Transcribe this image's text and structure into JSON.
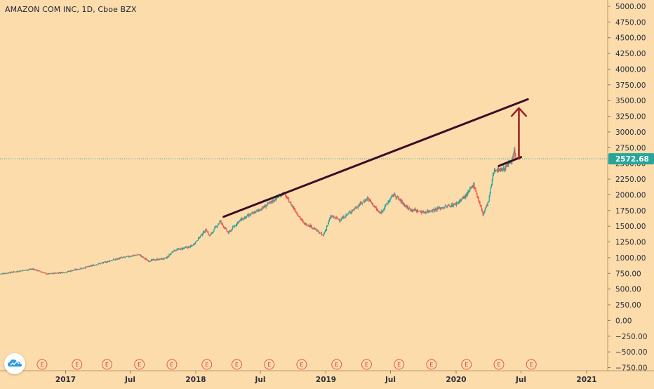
{
  "header": {
    "title": "AMAZON COM INC, 1D, Cboe BZX"
  },
  "price_scale": {
    "ticks": [
      "5000.00",
      "4750.00",
      "4500.00",
      "4250.00",
      "4000.00",
      "3750.00",
      "3500.00",
      "3250.00",
      "3000.00",
      "2750.00",
      "2500.00",
      "2250.00",
      "2000.00",
      "1750.00",
      "1500.00",
      "1250.00",
      "1000.00",
      "750.00",
      "500.00",
      "250.00",
      "0.00",
      "−250.00",
      "−500.00",
      "−750.00"
    ],
    "last_price": "2572.68",
    "last_price_color": "#26a69a"
  },
  "time_scale": {
    "labels": [
      "2017",
      "Jul",
      "2018",
      "Jul",
      "2019",
      "Jul",
      "2020",
      "Jul",
      "2021"
    ]
  },
  "earnings_marker": "E",
  "logo_icon": "tradingview-cloud-icon",
  "colors": {
    "background": "#fddcab",
    "up": "#26a69a",
    "down": "#ef5350",
    "trendline": "#3b0d26",
    "arrow": "#9c1c1c",
    "earnings": "#e0554f"
  },
  "chart_data": {
    "type": "candlestick",
    "title": "AMAZON COM INC, 1D, Cboe BZX",
    "ylim": [
      -800,
      5100
    ],
    "y_ticks": [
      5000,
      4750,
      4500,
      4250,
      4000,
      3750,
      3500,
      3250,
      3000,
      2750,
      2500,
      2250,
      2000,
      1750,
      1500,
      1250,
      1000,
      750,
      500,
      250,
      0,
      -250,
      -500,
      -750
    ],
    "x_range": [
      "2016-07-01",
      "2021-03-01"
    ],
    "x_ticks": [
      {
        "label": "2017",
        "date": "2017-01-01"
      },
      {
        "label": "Jul",
        "date": "2017-07-01"
      },
      {
        "label": "2018",
        "date": "2018-01-01"
      },
      {
        "label": "Jul",
        "date": "2018-07-01"
      },
      {
        "label": "2019",
        "date": "2019-01-01"
      },
      {
        "label": "Jul",
        "date": "2019-07-01"
      },
      {
        "label": "2020",
        "date": "2020-01-01"
      },
      {
        "label": "Jul",
        "date": "2020-07-01"
      },
      {
        "label": "2021",
        "date": "2021-01-01"
      }
    ],
    "last_price": 2572.68,
    "price_path": [
      {
        "date": "2016-07-01",
        "price": 740
      },
      {
        "date": "2016-10-01",
        "price": 820
      },
      {
        "date": "2016-11-10",
        "price": 740
      },
      {
        "date": "2017-01-01",
        "price": 770
      },
      {
        "date": "2017-03-01",
        "price": 850
      },
      {
        "date": "2017-06-01",
        "price": 990
      },
      {
        "date": "2017-07-25",
        "price": 1050
      },
      {
        "date": "2017-08-20",
        "price": 950
      },
      {
        "date": "2017-10-10",
        "price": 990
      },
      {
        "date": "2017-10-30",
        "price": 1110
      },
      {
        "date": "2017-12-20",
        "price": 1180
      },
      {
        "date": "2018-01-30",
        "price": 1450
      },
      {
        "date": "2018-02-08",
        "price": 1340
      },
      {
        "date": "2018-03-10",
        "price": 1580
      },
      {
        "date": "2018-04-02",
        "price": 1390
      },
      {
        "date": "2018-05-01",
        "price": 1580
      },
      {
        "date": "2018-07-10",
        "price": 1800
      },
      {
        "date": "2018-09-04",
        "price": 2030
      },
      {
        "date": "2018-10-10",
        "price": 1720
      },
      {
        "date": "2018-10-30",
        "price": 1550
      },
      {
        "date": "2018-11-20",
        "price": 1500
      },
      {
        "date": "2018-12-24",
        "price": 1350
      },
      {
        "date": "2019-01-15",
        "price": 1660
      },
      {
        "date": "2019-02-10",
        "price": 1600
      },
      {
        "date": "2019-04-28",
        "price": 1950
      },
      {
        "date": "2019-06-01",
        "price": 1700
      },
      {
        "date": "2019-07-10",
        "price": 2010
      },
      {
        "date": "2019-08-20",
        "price": 1780
      },
      {
        "date": "2019-10-01",
        "price": 1720
      },
      {
        "date": "2019-12-30",
        "price": 1850
      },
      {
        "date": "2020-01-31",
        "price": 2000
      },
      {
        "date": "2020-02-19",
        "price": 2170
      },
      {
        "date": "2020-03-16",
        "price": 1690
      },
      {
        "date": "2020-04-01",
        "price": 1900
      },
      {
        "date": "2020-04-16",
        "price": 2400
      },
      {
        "date": "2020-05-15",
        "price": 2410
      },
      {
        "date": "2020-06-08",
        "price": 2580
      },
      {
        "date": "2020-06-12",
        "price": 2700
      },
      {
        "date": "2020-06-16",
        "price": 2572.68
      }
    ],
    "trendlines": [
      {
        "from": {
          "date": "2018-03-20",
          "price": 1650
        },
        "to": {
          "date": "2020-07-20",
          "price": 3520
        }
      },
      {
        "from": {
          "date": "2020-04-30",
          "price": 2460
        },
        "to": {
          "date": "2020-07-01",
          "price": 2600
        }
      }
    ],
    "arrow": {
      "from": {
        "date": "2020-06-25",
        "price": 2560
      },
      "to": {
        "date": "2020-06-25",
        "price": 3380
      }
    },
    "earnings_dates": [
      "2016-07-28",
      "2016-10-27",
      "2017-02-02",
      "2017-04-27",
      "2017-07-27",
      "2017-10-26",
      "2018-02-01",
      "2018-04-26",
      "2018-07-26",
      "2018-10-25",
      "2019-01-31",
      "2019-04-25",
      "2019-07-25",
      "2019-10-24",
      "2020-01-30",
      "2020-04-30",
      "2020-07-30"
    ]
  }
}
